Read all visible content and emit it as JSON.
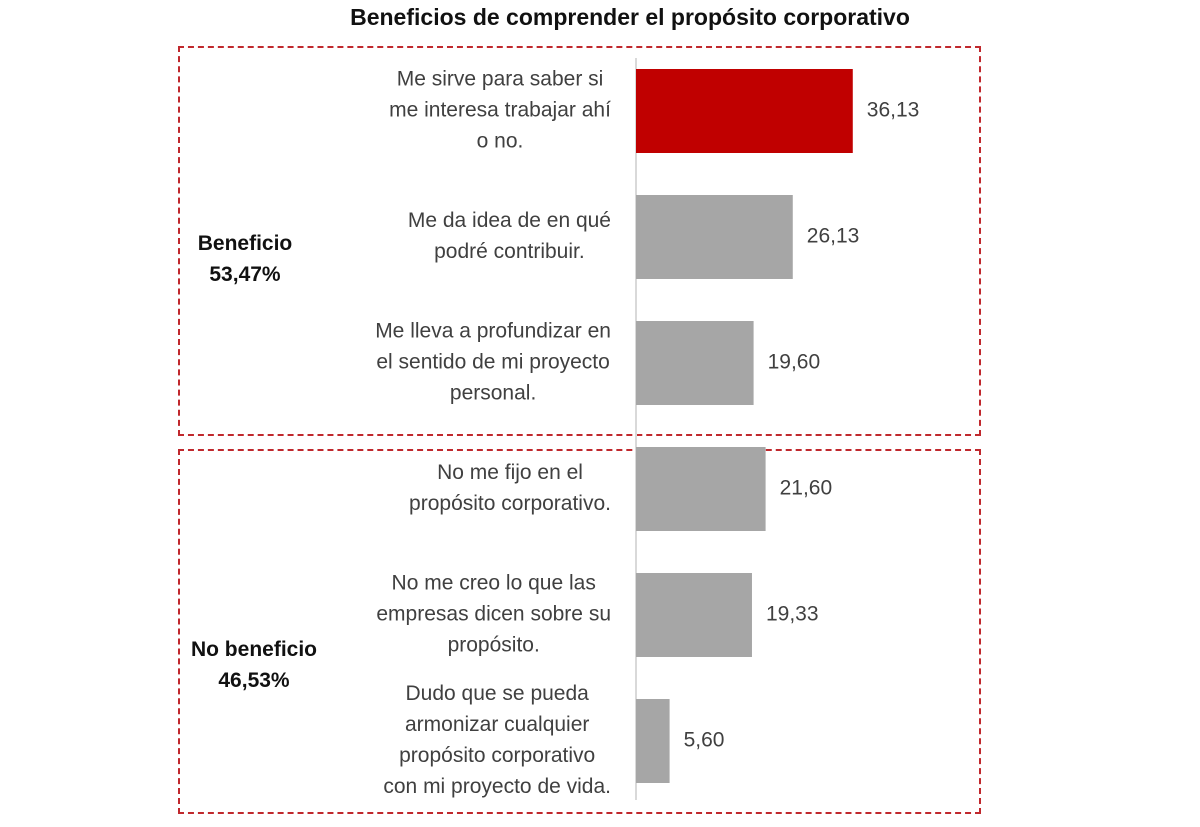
{
  "chart_data": {
    "type": "bar",
    "orientation": "horizontal",
    "title": "Beneficios de comprender el propósito corporativo",
    "groups": [
      {
        "label_lines": [
          "Beneficio",
          "53,47%"
        ],
        "categories": [
          {
            "lines": [
              "Me sirve para saber si",
              "me interesa trabajar ahí",
              "o no."
            ],
            "value": 36.13,
            "value_label": "36,13",
            "color": "#c00000"
          },
          {
            "lines": [
              "Me da idea de en qué",
              "podré contribuir."
            ],
            "value": 26.13,
            "value_label": "26,13",
            "color": "#a6a6a6"
          },
          {
            "lines": [
              "Me lleva a profundizar en",
              "el sentido de mi proyecto",
              "personal."
            ],
            "value": 19.6,
            "value_label": "19,60",
            "color": "#a6a6a6"
          }
        ]
      },
      {
        "label_lines": [
          "No beneficio",
          "46,53%"
        ],
        "categories": [
          {
            "lines": [
              "No me fijo en el",
              "propósito corporativo."
            ],
            "value": 21.6,
            "value_label": "21,60",
            "color": "#a6a6a6"
          },
          {
            "lines": [
              "No me creo lo que las",
              "empresas dicen sobre su",
              "propósito."
            ],
            "value": 19.33,
            "value_label": "19,33",
            "color": "#a6a6a6"
          },
          {
            "lines": [
              "Dudo que se pueda",
              "armonizar cualquier",
              "propósito corporativo",
              "con mi proyecto de vida."
            ],
            "value": 5.6,
            "value_label": "5,60",
            "color": "#a6a6a6"
          }
        ]
      }
    ],
    "axis_line_color": "#d9d9d9",
    "group_border_color": "#c0282d"
  }
}
